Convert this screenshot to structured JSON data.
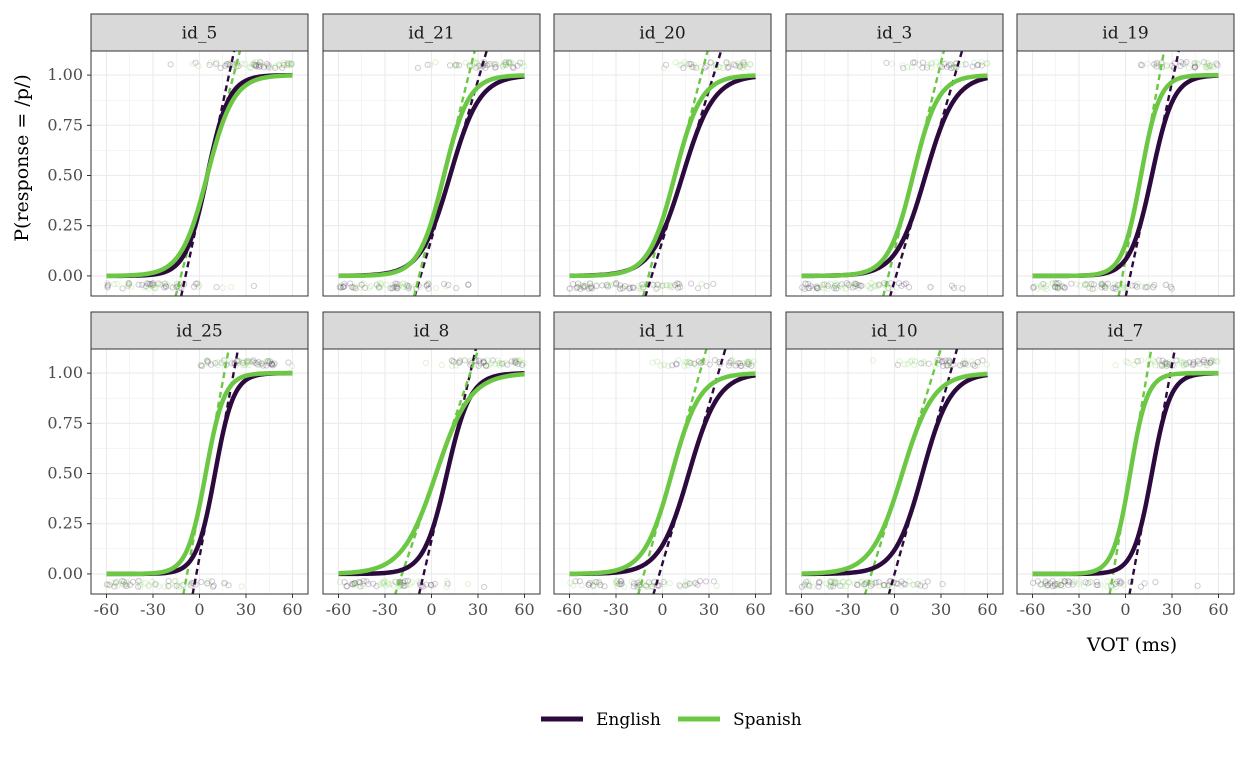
{
  "chart_data": {
    "type": "line",
    "xlabel": "VOT (ms)",
    "ylabel": "P(response = /p/)",
    "xlim": [
      -70,
      70
    ],
    "ylim": [
      -0.1,
      1.12
    ],
    "x_ticks": [
      -60,
      -30,
      0,
      30,
      60
    ],
    "x_tick_labels": [
      "-60",
      "-30",
      "0",
      "30",
      "60"
    ],
    "y_ticks": [
      0,
      0.25,
      0.5,
      0.75,
      1
    ],
    "y_tick_labels": [
      "0.00",
      "0.25",
      "0.50",
      "0.75",
      "1.00"
    ],
    "grid": true,
    "legend_position": "bottom",
    "series": [
      {
        "name": "English",
        "color": "#2d0a3e"
      },
      {
        "name": "Spanish",
        "color": "#6cc844"
      }
    ],
    "curve_model": "logistic: p = 1 / (1 + exp(-(VOT - midpoint) / scale)); dashed line = tangent at the midpoint",
    "panels": [
      {
        "label": "id_5",
        "english": {
          "midpoint": 5,
          "scale": 7.0
        },
        "spanish": {
          "midpoint": 5,
          "scale": 8.5
        }
      },
      {
        "label": "id_21",
        "english": {
          "midpoint": 12,
          "scale": 9.5
        },
        "spanish": {
          "midpoint": 8,
          "scale": 8.0
        }
      },
      {
        "label": "id_20",
        "english": {
          "midpoint": 13,
          "scale": 10.0
        },
        "spanish": {
          "midpoint": 8,
          "scale": 8.5
        }
      },
      {
        "label": "id_3",
        "english": {
          "midpoint": 20,
          "scale": 9.5
        },
        "spanish": {
          "midpoint": 12,
          "scale": 8.0
        }
      },
      {
        "label": "id_19",
        "english": {
          "midpoint": 17,
          "scale": 7.0
        },
        "spanish": {
          "midpoint": 10,
          "scale": 6.0
        }
      },
      {
        "label": "id_25",
        "english": {
          "midpoint": 10,
          "scale": 6.0
        },
        "spanish": {
          "midpoint": 4,
          "scale": 6.0
        }
      },
      {
        "label": "id_8",
        "english": {
          "midpoint": 10,
          "scale": 7.5
        },
        "spanish": {
          "midpoint": 3,
          "scale": 11.0
        }
      },
      {
        "label": "id_11",
        "english": {
          "midpoint": 17,
          "scale": 9.5
        },
        "spanish": {
          "midpoint": 6,
          "scale": 9.0
        }
      },
      {
        "label": "id_10",
        "english": {
          "midpoint": 18,
          "scale": 9.0
        },
        "spanish": {
          "midpoint": 5,
          "scale": 10.0
        }
      },
      {
        "label": "id_7",
        "english": {
          "midpoint": 17,
          "scale": 6.0
        },
        "spanish": {
          "midpoint": 3,
          "scale": 5.5
        }
      }
    ],
    "raw_points": "jittered binary responses near 0 and 1, shown as faint open circles"
  }
}
